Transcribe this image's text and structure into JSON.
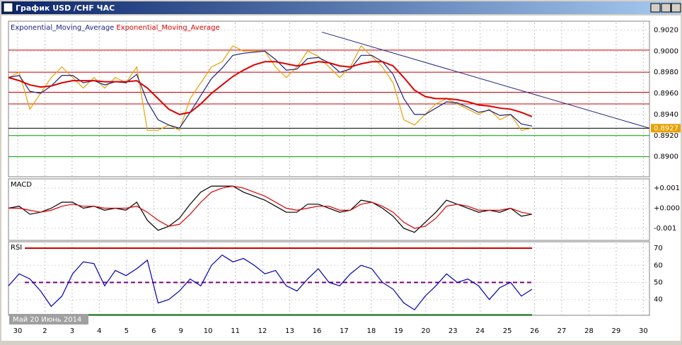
{
  "window": {
    "title": "График USD /CHF ЧАС"
  },
  "x_axis": {
    "categories": [
      "30",
      "2",
      "3",
      "4",
      "5",
      "6",
      "9",
      "10",
      "11",
      "12",
      "13",
      "16",
      "17",
      "18",
      "19",
      "20",
      "23",
      "24",
      "25",
      "26",
      "27",
      "28",
      "29",
      "30"
    ],
    "period_label": "Май 20 Июнь 2014"
  },
  "chart_data": [
    {
      "type": "line",
      "ylim": [
        0.8881,
        0.9027
      ],
      "yticks": [
        {
          "value": 0.902,
          "label": "0.9020"
        },
        {
          "value": 0.9,
          "label": "0.9000"
        },
        {
          "value": 0.898,
          "label": "0.8980"
        },
        {
          "value": 0.896,
          "label": "0.8960"
        },
        {
          "value": 0.894,
          "label": "0.8940"
        },
        {
          "value": 0.892,
          "label": "0.8920"
        },
        {
          "value": 0.89,
          "label": "0.8900"
        }
      ],
      "grid": true,
      "levels": [
        {
          "value": 0.9001,
          "color": "#cc0000"
        },
        {
          "value": 0.898,
          "color": "#cc0000"
        },
        {
          "value": 0.8961,
          "color": "#cc0000"
        },
        {
          "value": 0.895,
          "color": "#cc0000"
        },
        {
          "value": 0.892,
          "color": "#00a000"
        },
        {
          "value": 0.89,
          "color": "#00a000"
        }
      ],
      "current_price": 0.8927,
      "trendline": [
        0.9018,
        0.8927
      ],
      "series": [
        {
          "color": "#e8a000",
          "values": [
            0.8975,
            0.898,
            0.8945,
            0.896,
            0.8975,
            0.8985,
            0.8975,
            0.8965,
            0.8975,
            0.8965,
            0.8975,
            0.897,
            0.8985,
            0.8925,
            0.8925,
            0.893,
            0.8925,
            0.8955,
            0.897,
            0.8985,
            0.899,
            0.9005,
            0.9,
            0.9,
            0.9,
            0.8985,
            0.8975,
            0.8985,
            0.9,
            0.8995,
            0.8985,
            0.8975,
            0.8985,
            0.9005,
            0.8995,
            0.8985,
            0.897,
            0.8935,
            0.893,
            0.894,
            0.895,
            0.8955,
            0.895,
            0.8945,
            0.894,
            0.8945,
            0.8935,
            0.894,
            0.8925,
            0.8927
          ]
        },
        {
          "name": "Exponential_Moving_Average",
          "color": "#1a237e",
          "values": [
            0.8975,
            0.8977,
            0.8962,
            0.896,
            0.8967,
            0.8977,
            0.8977,
            0.897,
            0.8972,
            0.8968,
            0.8971,
            0.897,
            0.8978,
            0.8952,
            0.8935,
            0.893,
            0.8927,
            0.8942,
            0.8958,
            0.8974,
            0.8984,
            0.8996,
            0.8998,
            0.8999,
            0.9,
            0.8992,
            0.8982,
            0.8983,
            0.8993,
            0.8994,
            0.8989,
            0.898,
            0.8983,
            0.8996,
            0.8996,
            0.899,
            0.8978,
            0.8955,
            0.894,
            0.894,
            0.8946,
            0.8952,
            0.8951,
            0.8947,
            0.8942,
            0.8944,
            0.8939,
            0.894,
            0.8931,
            0.8929
          ]
        },
        {
          "name": "Exponential_Moving_Average",
          "color": "#dd0000",
          "values": [
            0.8975,
            0.8972,
            0.8968,
            0.8966,
            0.8967,
            0.897,
            0.8972,
            0.8972,
            0.8972,
            0.8971,
            0.8971,
            0.8971,
            0.8972,
            0.8965,
            0.8955,
            0.8945,
            0.894,
            0.8942,
            0.895,
            0.896,
            0.8968,
            0.8976,
            0.8982,
            0.8987,
            0.899,
            0.899,
            0.8988,
            0.8986,
            0.8988,
            0.899,
            0.8989,
            0.8986,
            0.8985,
            0.8988,
            0.899,
            0.899,
            0.8986,
            0.8975,
            0.8963,
            0.8957,
            0.8955,
            0.8955,
            0.8954,
            0.8952,
            0.8949,
            0.8948,
            0.8946,
            0.8945,
            0.8942,
            0.8938
          ]
        }
      ]
    },
    {
      "type": "line",
      "title": "MACD",
      "ylim": [
        -0.0016,
        0.00139
      ],
      "yticks": [
        {
          "value": 0.001,
          "label": "+0.001"
        },
        {
          "value": 0,
          "label": "+0.000"
        },
        {
          "value": -0.001,
          "label": "-0.001"
        }
      ],
      "grid": true,
      "levels": [],
      "series": [
        {
          "color": "#000000",
          "values": [
            0,
            0.0001,
            -0.0003,
            -0.0002,
            0,
            0.0003,
            0.0003,
            0,
            0.0001,
            -0.0001,
            0,
            -0.0001,
            0.0003,
            -0.0006,
            -0.0011,
            -0.0009,
            -0.0005,
            0.0002,
            0.0008,
            0.0011,
            0.0011,
            0.0011,
            0.0008,
            0.0006,
            0.0004,
            0.0001,
            -0.0002,
            -0.0002,
            0.0002,
            0.0002,
            0,
            -0.0002,
            -0.0001,
            0.0004,
            0.0003,
            0,
            -0.0004,
            -0.001,
            -0.0012,
            -0.0007,
            -0.0002,
            0.0004,
            0.0002,
            0,
            -0.0002,
            -0.0001,
            -0.0002,
            0,
            -0.0004,
            -0.0003
          ]
        },
        {
          "color": "#dd0000",
          "values": [
            0,
            0,
            -0.0001,
            -0.0002,
            -0.0001,
            0.0001,
            0.0002,
            0.0001,
            0.0001,
            0,
            0,
            0,
            0.0001,
            -0.0002,
            -0.0006,
            -0.0009,
            -0.0008,
            -0.0003,
            0.0003,
            0.0008,
            0.001,
            0.0011,
            0.001,
            0.0008,
            0.0006,
            0.0003,
            0,
            -0.0001,
            0,
            0.0001,
            0.0001,
            -0.0001,
            -0.0001,
            0.0002,
            0.0003,
            0.0001,
            -0.0002,
            -0.0007,
            -0.001,
            -0.0009,
            -0.0005,
            0.0001,
            0.0002,
            0.0001,
            -0.0001,
            -0.0001,
            -0.0001,
            0,
            -0.0002,
            -0.0003
          ]
        }
      ]
    },
    {
      "type": "line",
      "title": "RSI",
      "ylim": [
        30.8,
        72.9
      ],
      "yticks": [
        70,
        60,
        50,
        40
      ],
      "grid": true,
      "levels": [
        {
          "value": 70,
          "color": "#cc0000"
        },
        {
          "value": 50,
          "color": "#800080",
          "dashed": true
        },
        {
          "value": 31,
          "color": "#006400"
        }
      ],
      "series": [
        {
          "color": "#0000b0",
          "values": [
            48,
            55,
            52,
            45,
            36,
            42,
            55,
            62,
            61,
            48,
            57,
            54,
            58,
            63,
            38,
            40,
            45,
            52,
            48,
            60,
            66,
            62,
            64,
            60,
            55,
            57,
            48,
            45,
            52,
            58,
            50,
            48,
            55,
            60,
            58,
            50,
            46,
            38,
            34,
            42,
            48,
            55,
            50,
            52,
            48,
            40,
            47,
            50,
            42,
            46
          ]
        }
      ]
    }
  ]
}
